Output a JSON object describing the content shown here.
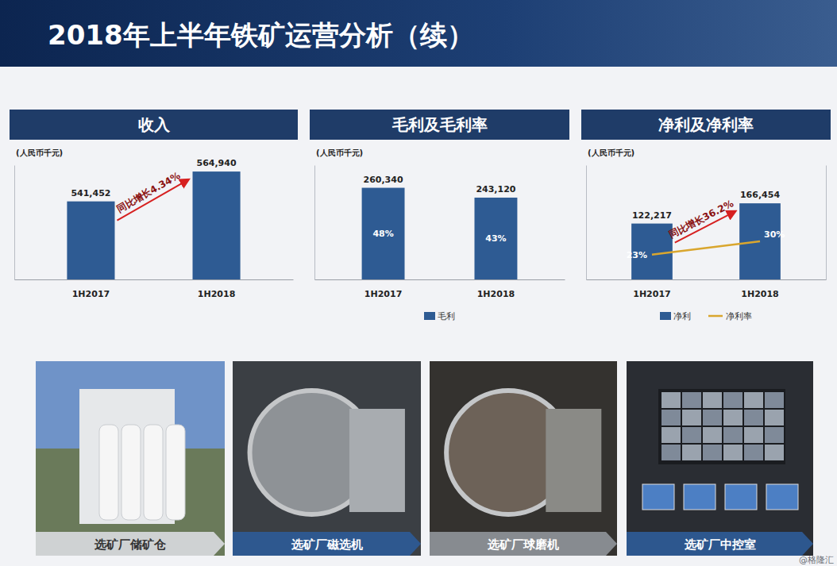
{
  "title": "2018年上半年铁矿运营分析（续）",
  "chart_data": [
    {
      "type": "bar",
      "title": "收入",
      "subtitle": "(人民币千元)",
      "categories": [
        "1H2017",
        "1H2018"
      ],
      "values": [
        541452,
        564940
      ],
      "value_labels": [
        "541,452",
        "564,940"
      ],
      "color": "#2e5b93",
      "ylim": [
        480000,
        570000
      ],
      "yticks": [],
      "data_labels": true,
      "tick_labels": "x",
      "annotations": [
        "同比增长4.34%"
      ]
    },
    {
      "type": "bar",
      "title": "毛利及毛利率",
      "subtitle": "(人民币千元)",
      "categories": [
        "1H2017",
        "1H2018"
      ],
      "series": [
        {
          "name": "毛利",
          "color": "#2e5b93",
          "values": [
            260340,
            243120
          ],
          "value_labels": [
            "260,340",
            "243,120"
          ]
        }
      ],
      "margin": {
        "values": [
          48,
          43
        ],
        "value_labels": [
          "48%",
          "43%"
        ]
      },
      "ylim": [
        100000,
        300000
      ],
      "yticks": [],
      "data_labels": true,
      "tick_labels": "x",
      "legend": "bottom"
    },
    {
      "type": "bar",
      "title": "净利及净利率",
      "subtitle": "(人民币千元)",
      "categories": [
        "1H2017",
        "1H2018"
      ],
      "series": [
        {
          "name": "净利",
          "type": "bar",
          "color": "#2e5b93",
          "values": [
            122217,
            166454
          ],
          "value_labels": [
            "122,217",
            "166,454"
          ]
        },
        {
          "name": "净利率",
          "type": "line",
          "color": "#d9a62e",
          "axis": "y2",
          "values": [
            23,
            30
          ],
          "value_labels": [
            "23%",
            "30%"
          ]
        }
      ],
      "ylim": [
        0,
        250000
      ],
      "yticks": [],
      "y2lim": [
        10,
        70
      ],
      "y2ticks": [],
      "data_labels": true,
      "tick_labels": "x",
      "legend": "bottom",
      "annotations": [
        "同比增长36.2%"
      ]
    }
  ],
  "photo_captions": [
    "选矿厂储矿仓",
    "选矿厂磁选机",
    "选矿厂球磨机",
    "选矿厂中控室"
  ],
  "watermark": "@格隆汇"
}
